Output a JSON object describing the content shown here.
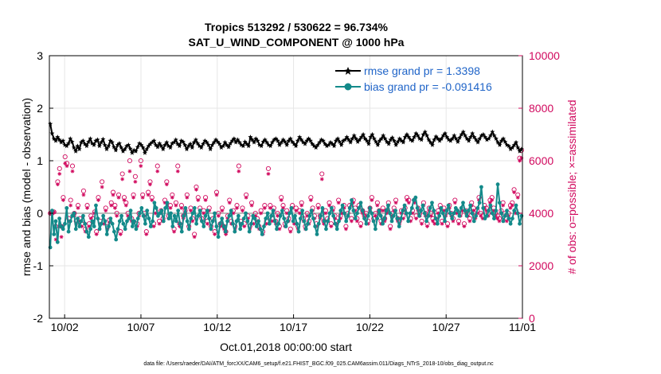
{
  "chart_data": {
    "type": "line",
    "title": "Tropics 513292 / 530622 = 96.734%",
    "subtitle": "SAT_U_WIND_COMPONENT @ 1000 hPa",
    "xlabel": "Oct.01,2018 00:00:00 start",
    "ylabel": "rmse and bias (model - observation)",
    "y2label": "# of obs: o=possible; ×=assimilated",
    "xlim": [
      0,
      31
    ],
    "ylim": [
      -2,
      3
    ],
    "y2lim": [
      0,
      10000
    ],
    "x_ticks": [
      1,
      6,
      11,
      16,
      21,
      26,
      31
    ],
    "x_tick_labels": [
      "10/02",
      "10/07",
      "10/12",
      "10/17",
      "10/22",
      "10/27",
      "11/01"
    ],
    "y_tick_labels": [
      "-2",
      "-1",
      "0",
      "1",
      "2",
      "3"
    ],
    "y2_tick_labels": [
      "0",
      "2000",
      "4000",
      "6000",
      "8000",
      "10000"
    ],
    "grid": true,
    "legend_position": "top-right",
    "series": [
      {
        "name": "rmse grand pr = 1.3398",
        "color": "#000000",
        "marker": "star",
        "values": [
          1.7,
          1.52,
          1.42,
          1.38,
          1.45,
          1.4,
          1.35,
          1.38,
          1.3,
          1.28,
          1.33,
          1.42,
          1.36,
          1.25,
          1.18,
          1.28,
          1.22,
          1.35,
          1.38,
          1.32,
          1.28,
          1.36,
          1.42,
          1.33,
          1.3,
          1.38,
          1.4,
          1.28,
          1.35,
          1.41,
          1.3,
          1.22,
          1.28,
          1.38,
          1.35,
          1.26,
          1.2,
          1.3,
          1.33,
          1.25,
          1.18,
          1.22,
          1.28,
          1.3,
          1.23,
          1.15,
          1.2,
          1.18,
          1.26,
          1.33,
          1.3,
          1.25,
          1.15,
          1.22,
          1.28,
          1.32,
          1.35,
          1.38,
          1.3,
          1.26,
          1.33,
          1.28,
          1.22,
          1.3,
          1.35,
          1.28,
          1.25,
          1.33,
          1.35,
          1.4,
          1.32,
          1.28,
          1.38,
          1.36,
          1.3,
          1.22,
          1.28,
          1.32,
          1.25,
          1.35,
          1.4,
          1.33,
          1.28,
          1.25,
          1.32,
          1.38,
          1.35,
          1.3,
          1.22,
          1.3,
          1.35,
          1.4,
          1.36,
          1.32,
          1.25,
          1.28,
          1.35,
          1.3,
          1.26,
          1.33,
          1.38,
          1.42,
          1.35,
          1.4,
          1.35,
          1.3,
          1.28,
          1.36,
          1.32,
          1.28,
          1.45,
          1.4,
          1.35,
          1.42,
          1.38,
          1.3,
          1.28,
          1.36,
          1.4,
          1.35,
          1.3,
          1.28,
          1.35,
          1.4,
          1.42,
          1.38,
          1.3,
          1.35,
          1.4,
          1.36,
          1.3,
          1.38,
          1.42,
          1.36,
          1.32,
          1.28,
          1.38,
          1.45,
          1.4,
          1.35,
          1.32,
          1.38,
          1.42,
          1.38,
          1.32,
          1.28,
          1.25,
          1.3,
          1.35,
          1.4,
          1.38,
          1.32,
          1.28,
          1.3,
          1.35,
          1.32,
          1.28,
          1.38,
          1.42,
          1.36,
          1.3,
          1.38,
          1.4,
          1.45,
          1.4,
          1.35,
          1.42,
          1.48,
          1.42,
          1.36,
          1.4,
          1.45,
          1.5,
          1.42,
          1.38,
          1.32,
          1.45,
          1.5,
          1.42,
          1.36,
          1.3,
          1.38,
          1.42,
          1.48,
          1.42,
          1.36,
          1.32,
          1.4,
          1.44,
          1.38,
          1.3,
          1.36,
          1.42,
          1.38,
          1.35,
          1.45,
          1.5,
          1.45,
          1.4,
          1.38,
          1.45,
          1.52,
          1.48,
          1.42,
          1.4,
          1.5,
          1.55,
          1.48,
          1.4,
          1.35,
          1.3,
          1.4,
          1.46,
          1.42,
          1.38,
          1.42,
          1.48,
          1.52,
          1.45,
          1.4,
          1.38,
          1.42,
          1.48,
          1.42,
          1.36,
          1.44,
          1.5,
          1.55,
          1.48,
          1.42,
          1.38,
          1.45,
          1.52,
          1.45,
          1.4,
          1.35,
          1.42,
          1.48,
          1.5,
          1.45,
          1.4,
          1.42,
          1.48,
          1.55,
          1.48,
          1.42,
          1.35,
          1.3,
          1.38,
          1.42,
          1.36,
          1.3,
          1.28,
          1.22,
          1.25,
          1.3,
          1.35,
          1.25,
          1.18,
          1.22
        ]
      },
      {
        "name": "bias grand pr = -0.091416",
        "color": "#138a8a",
        "marker": "circle",
        "values": [
          -0.65,
          0.05,
          -0.4,
          -0.15,
          -0.55,
          -0.1,
          -0.25,
          -0.3,
          -0.2,
          0.1,
          -0.35,
          -0.15,
          -0.05,
          0.0,
          -0.3,
          -0.1,
          -0.25,
          -0.15,
          -0.05,
          -0.2,
          -0.35,
          -0.45,
          -0.3,
          -0.15,
          -0.25,
          0.15,
          -0.1,
          -0.3,
          -0.2,
          -0.05,
          -0.15,
          -0.4,
          -0.25,
          -0.1,
          -0.2,
          -0.35,
          -0.5,
          -0.3,
          -0.15,
          -0.05,
          -0.2,
          -0.3,
          -0.15,
          -0.1,
          0.05,
          -0.25,
          -0.15,
          -0.3,
          -0.1,
          0.0,
          0.1,
          -0.05,
          -0.2,
          0.05,
          -0.1,
          -0.25,
          -0.15,
          0.2,
          0.1,
          -0.05,
          0.0,
          0.05,
          -0.15,
          0.1,
          0.2,
          -0.1,
          0.0,
          -0.25,
          -0.05,
          -0.15,
          0.05,
          -0.2,
          -0.35,
          -0.05,
          0.1,
          -0.15,
          -0.3,
          -0.1,
          0.0,
          0.1,
          -0.2,
          -0.05,
          0.05,
          -0.15,
          -0.25,
          -0.05,
          0.05,
          -0.1,
          -0.3,
          -0.15,
          0.0,
          -0.25,
          -0.45,
          -0.2,
          -0.1,
          -0.25,
          -0.35,
          -0.15,
          -0.05,
          0.05,
          -0.2,
          -0.35,
          -0.15,
          -0.05,
          -0.3,
          -0.2,
          -0.1,
          0.0,
          -0.15,
          -0.35,
          -0.2,
          -0.05,
          -0.1,
          -0.25,
          -0.15,
          -0.3,
          -0.4,
          -0.25,
          -0.1,
          0.0,
          -0.2,
          -0.05,
          0.05,
          -0.15,
          -0.3,
          -0.2,
          -0.05,
          0.05,
          -0.1,
          -0.25,
          -0.15,
          0.0,
          0.1,
          -0.15,
          -0.05,
          -0.2,
          -0.35,
          -0.1,
          0.05,
          -0.15,
          -0.3,
          -0.2,
          -0.05,
          0.05,
          -0.1,
          -0.25,
          -0.4,
          -0.2,
          -0.05,
          0.1,
          -0.15,
          -0.3,
          -0.15,
          0.0,
          0.1,
          -0.05,
          -0.2,
          -0.3,
          -0.15,
          0.05,
          0.15,
          0.0,
          -0.15,
          -0.05,
          0.1,
          0.25,
          0.05,
          -0.1,
          0.0,
          0.1,
          0.2,
          0.05,
          -0.1,
          -0.2,
          -0.05,
          0.1,
          0.0,
          -0.15,
          -0.3,
          -0.1,
          0.05,
          -0.05,
          -0.2,
          -0.1,
          0.05,
          0.15,
          0.0,
          -0.15,
          -0.05,
          0.05,
          -0.1,
          -0.25,
          -0.1,
          0.05,
          0.15,
          0.0,
          -0.15,
          0.0,
          0.1,
          0.25,
          0.3,
          0.1,
          -0.05,
          0.05,
          0.15,
          0.0,
          -0.15,
          -0.05,
          0.1,
          0.2,
          0.05,
          -0.1,
          -0.2,
          -0.05,
          0.1,
          0.0,
          -0.15,
          0.05,
          0.15,
          0.0,
          -0.1,
          0.0,
          0.1,
          0.05,
          -0.05,
          0.1,
          0.2,
          0.05,
          -0.05,
          0.05,
          0.15,
          0.0,
          -0.15,
          -0.05,
          0.1,
          0.2,
          0.5,
          0.1,
          -0.1,
          -0.05,
          0.05,
          0.15,
          0.0,
          -0.1,
          0.05,
          0.55,
          0.2,
          0.0,
          -0.15,
          -0.05,
          0.05,
          -0.1,
          -0.2,
          -0.1,
          0.05,
          0.15,
          0.0,
          -0.2,
          -0.05
        ]
      }
    ],
    "obs_series": [
      {
        "name": "possible",
        "marker": "o",
        "color": "#d1095e",
        "values": [
          4000,
          4000,
          4050,
          3500,
          5200,
          5700,
          3500,
          4600,
          6150,
          5900,
          3800,
          4500,
          5800,
          4000,
          3700,
          4300,
          3800,
          3600,
          4850,
          3400,
          4300,
          3600,
          3900,
          3800,
          4050,
          3300,
          4600,
          3700,
          5200,
          3700,
          4200,
          3500,
          3750,
          4400,
          4800,
          4300,
          4000,
          4700,
          3300,
          5500,
          4600,
          4400,
          4000,
          6000,
          3800,
          4700,
          5400,
          3600,
          4000,
          6000,
          4700,
          4000,
          3300,
          4800,
          5200,
          4600,
          3600,
          4100,
          5800,
          3700,
          4100,
          3800,
          4500,
          5200,
          3900,
          4300,
          4700,
          3400,
          4400,
          5800,
          3600,
          4300,
          3900,
          4100,
          4700,
          3500,
          4200,
          3800,
          3200,
          5000,
          4600,
          4200,
          3800,
          4100,
          4600,
          3700,
          4200,
          3500,
          3800,
          3300,
          4800,
          4000,
          3600,
          4200,
          3500,
          3300,
          3900,
          4500,
          3700,
          4100,
          3500,
          4300,
          5800,
          3700,
          4200,
          3600,
          4700,
          3900,
          3500,
          4400,
          3700,
          4000,
          3800,
          3500,
          4100,
          3300,
          4300,
          3700,
          5700,
          4300,
          3800,
          4200,
          3700,
          4000,
          3500,
          4600,
          4300,
          3600,
          4100,
          3800,
          3400,
          4300,
          3700,
          4200,
          3500,
          4100,
          4400,
          3800,
          3500,
          4000,
          3700,
          4600,
          4200,
          3900,
          3600,
          4300,
          3900,
          5500,
          3700,
          4100,
          3800,
          4400,
          3600,
          4200,
          3900,
          3700,
          4500,
          3900,
          4100,
          4300,
          3500,
          4000,
          4300,
          3800,
          4500,
          4200,
          3800,
          4300,
          3600,
          4100,
          3900,
          4000,
          3700,
          4200,
          4600,
          3800,
          4000,
          4400,
          4100,
          3700,
          4200,
          3800,
          4100,
          4400,
          3500,
          4000,
          4200,
          4500,
          3800,
          3700,
          4100,
          3900,
          4200,
          4600,
          4500,
          3800,
          4100,
          4500,
          3900,
          4200,
          4000,
          3700,
          4400,
          4000,
          3600,
          4200,
          4000,
          3800,
          3700,
          3900,
          4100,
          4300,
          3700,
          4200,
          4000,
          3600,
          4300,
          4000,
          3800,
          4500,
          4100,
          3700,
          4000,
          4200,
          3600,
          4100,
          4000,
          3800,
          4400,
          4200,
          3900,
          4100,
          4600,
          4000,
          3900,
          4300,
          4200,
          4000,
          4500,
          4600,
          4200,
          4000,
          3900,
          3800,
          4100,
          4400,
          4000,
          3800,
          4000,
          4300,
          4400,
          4900,
          4100,
          4700,
          6100,
          6400
        ]
      },
      {
        "name": "assimilated",
        "marker": "*",
        "color": "#d1095e",
        "values": [
          4000,
          4000,
          4050,
          3000,
          5100,
          5500,
          3100,
          4500,
          5900,
          5800,
          3700,
          4300,
          5600,
          3900,
          3600,
          4200,
          3700,
          3500,
          4700,
          3300,
          4200,
          3500,
          3800,
          3700,
          4000,
          3200,
          4500,
          3600,
          5000,
          3600,
          4100,
          3400,
          3650,
          4300,
          4700,
          4200,
          3900,
          4600,
          3200,
          5300,
          4500,
          4300,
          3900,
          5600,
          3700,
          4600,
          5200,
          3500,
          3900,
          5800,
          4600,
          3900,
          3200,
          4700,
          5100,
          4500,
          3500,
          4000,
          5600,
          3600,
          4000,
          3700,
          4400,
          5100,
          3800,
          4200,
          4600,
          3300,
          4300,
          5600,
          3500,
          4200,
          3800,
          4000,
          4600,
          3400,
          4100,
          3700,
          3100,
          4900,
          4500,
          4100,
          3700,
          4000,
          4500,
          3600,
          4100,
          3400,
          3700,
          3200,
          4700,
          3900,
          3500,
          4100,
          3400,
          3200,
          3800,
          4400,
          3600,
          4000,
          3400,
          4200,
          5600,
          3600,
          4100,
          3500,
          4600,
          3800,
          3400,
          4300,
          3600,
          3900,
          3700,
          3400,
          4000,
          3200,
          4200,
          3600,
          5500,
          4200,
          3700,
          4100,
          3600,
          3900,
          3400,
          4500,
          4200,
          3500,
          4000,
          3700,
          3300,
          4200,
          3600,
          4100,
          3400,
          4000,
          4300,
          3700,
          3400,
          3900,
          3600,
          4500,
          4100,
          3800,
          3500,
          4200,
          3800,
          5300,
          3600,
          4000,
          3700,
          4300,
          3500,
          4100,
          3800,
          3600,
          4400,
          3800,
          4000,
          4200,
          3400,
          3900,
          4200,
          3700,
          4400,
          4100,
          3700,
          4200,
          3500,
          4000,
          3800,
          3900,
          3600,
          4100,
          4500,
          3700,
          3900,
          4300,
          4000,
          3600,
          4100,
          3700,
          4000,
          4300,
          3400,
          3900,
          4100,
          4400,
          3700,
          3600,
          4000,
          3800,
          4100,
          4500,
          4400,
          3700,
          4000,
          4400,
          3800,
          4100,
          3900,
          3600,
          4300,
          3900,
          3500,
          4100,
          3900,
          3700,
          3600,
          3800,
          4000,
          4200,
          3600,
          4100,
          3900,
          3500,
          4200,
          3900,
          3700,
          4400,
          4000,
          3600,
          3900,
          4100,
          3500,
          4000,
          3900,
          3700,
          4300,
          4100,
          3800,
          4000,
          4500,
          3900,
          3800,
          4200,
          4100,
          3900,
          4400,
          4500,
          4100,
          3900,
          3800,
          3700,
          4000,
          4300,
          3900,
          3700,
          3900,
          4200,
          4300,
          4800,
          4000,
          4600,
          6000,
          6100
        ]
      }
    ],
    "legend": [
      {
        "label": "rmse grand pr = 1.3398"
      },
      {
        "label": "bias grand pr = -0.091416"
      }
    ],
    "footer": "data file: /Users/raeder/DAI/ATM_forcXX/CAM6_setup/f.e21.FHIST_BGC.f09_025.CAM6assim.011/Diags_NTrS_2018-10/obs_diag_output.nc"
  }
}
